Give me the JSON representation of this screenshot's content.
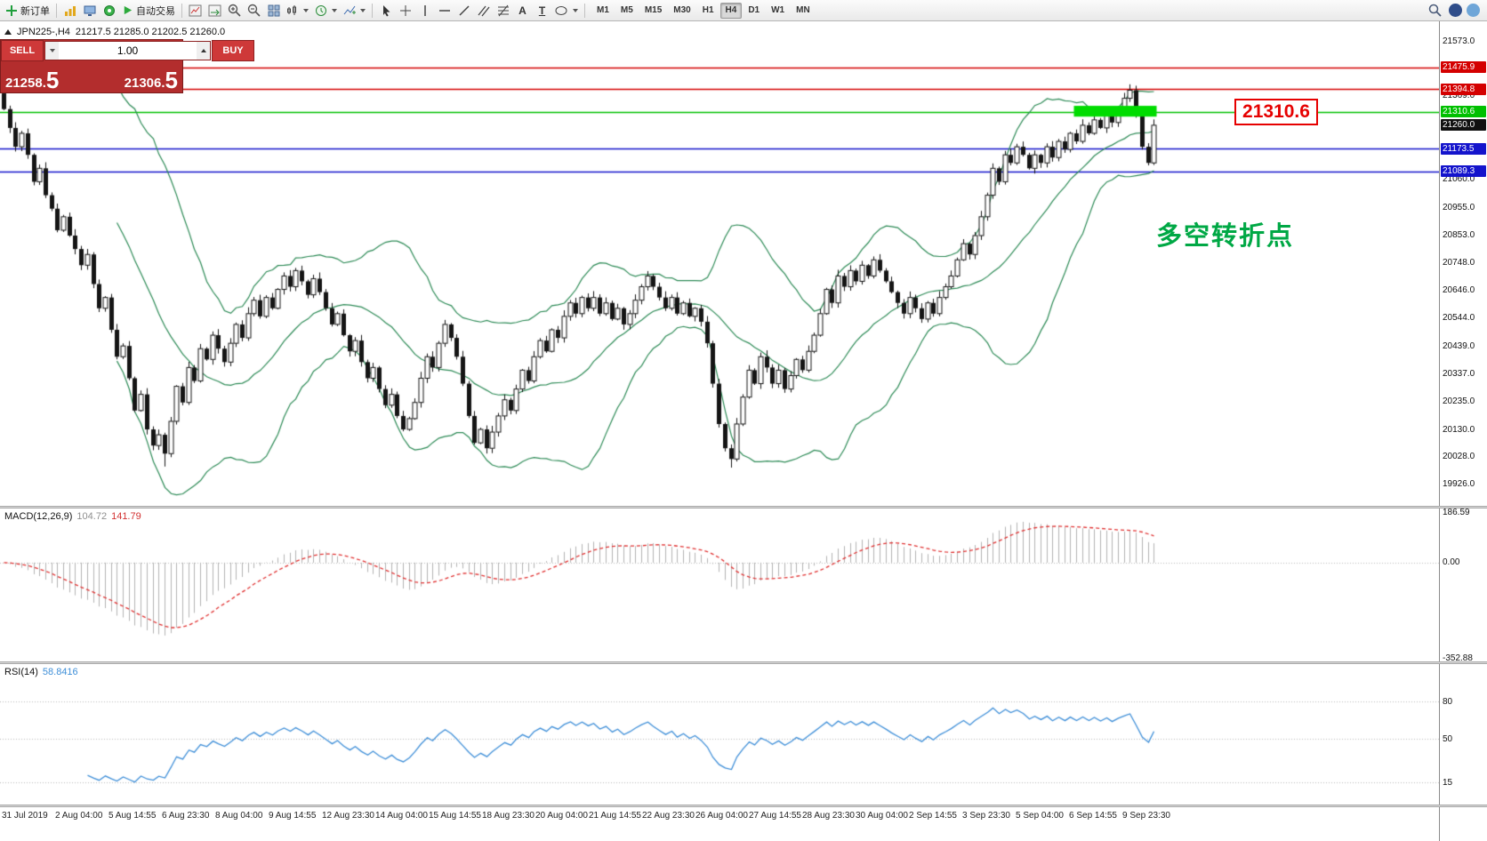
{
  "toolbar": {
    "new_order_label": "新订单",
    "auto_trading_label": "自动交易",
    "text_tool_glyph": "A",
    "label_tool_glyph": "T",
    "timeframes": [
      "M1",
      "M5",
      "M15",
      "M30",
      "H1",
      "H4",
      "D1",
      "W1",
      "MN"
    ],
    "active_timeframe": "H4"
  },
  "icons": {
    "new_order": "green-plus",
    "market_watch": "yellow-bars",
    "data_window": "blue-monitor",
    "navigator": "green-compass",
    "auto_trading": "green-play",
    "chart_shift": "chart-arrow",
    "auto_scroll": "chart-arrow-green",
    "zoom_in": "magnifier-plus",
    "zoom_out": "magnifier-minus",
    "tile_windows": "grid",
    "chart_type": "candles",
    "periods": "clock",
    "indicators": "chart-plus",
    "cursor": "arrow",
    "crosshair": "cross",
    "vertical_line": "vline",
    "horizontal_line": "hline",
    "trendline": "diagonal",
    "channel": "parallel-lines",
    "fibonacci": "fib-lines",
    "shapes": "ellipse",
    "search": "magnifier",
    "community": "blue-circle",
    "account": "gray-circle"
  },
  "symbol_info": {
    "symbol_period": "JPN225-,H4",
    "ohlc": "21217.5 21285.0 21202.5 21260.0"
  },
  "trade_panel": {
    "sell_label": "SELL",
    "buy_label": "BUY",
    "volume": "1.00",
    "sell_price_main": "21258.",
    "sell_price_big": "5",
    "buy_price_main": "21306.",
    "buy_price_big": "5"
  },
  "chart_data": {
    "type": "candlestick+indicators",
    "symbol": "JPN225-",
    "period": "H4",
    "price_max": 21646,
    "price_min": 19846,
    "first_open": 21380,
    "closes": [
      21320,
      21250,
      21180,
      21230,
      21150,
      21050,
      21100,
      21000,
      20950,
      20870,
      20920,
      20850,
      20800,
      20740,
      20780,
      20670,
      20580,
      20620,
      20500,
      20400,
      20440,
      20320,
      20200,
      20260,
      20130,
      20070,
      20110,
      20040,
      20160,
      20290,
      20230,
      20360,
      20310,
      20430,
      20390,
      20480,
      20430,
      20380,
      20450,
      20520,
      20470,
      20560,
      20610,
      20550,
      20620,
      20580,
      20650,
      20700,
      20660,
      20720,
      20680,
      20630,
      20690,
      20640,
      20580,
      20520,
      20560,
      20480,
      20420,
      20460,
      20380,
      20320,
      20360,
      20280,
      20220,
      20260,
      20180,
      20130,
      20170,
      20230,
      20320,
      20400,
      20360,
      20450,
      20520,
      20470,
      20400,
      20300,
      20180,
      20080,
      20130,
      20060,
      20120,
      20180,
      20240,
      20200,
      20280,
      20350,
      20310,
      20400,
      20460,
      20420,
      20500,
      20470,
      20550,
      20600,
      20560,
      20620,
      20580,
      20620,
      20560,
      20600,
      20540,
      20580,
      20520,
      20560,
      20610,
      20660,
      20700,
      20660,
      20620,
      20580,
      20620,
      20560,
      20600,
      20550,
      20580,
      20530,
      20450,
      20300,
      20150,
      20060,
      20020,
      20150,
      20250,
      20350,
      20300,
      20400,
      20360,
      20300,
      20350,
      20280,
      20330,
      20390,
      20350,
      20420,
      20480,
      20560,
      20650,
      20600,
      20700,
      20660,
      20720,
      20680,
      20740,
      20700,
      20760,
      20720,
      20680,
      20640,
      20600,
      20560,
      20620,
      20580,
      20540,
      20600,
      20560,
      20620,
      20660,
      20700,
      20760,
      20820,
      20780,
      20850,
      20920,
      21000,
      21100,
      21050,
      21150,
      21120,
      21180,
      21150,
      21100,
      21150,
      21120,
      21180,
      21140,
      21200,
      21170,
      21230,
      21200,
      21260,
      21230,
      21280,
      21250,
      21300,
      21270,
      21320,
      21360,
      21390,
      21300,
      21180,
      21120,
      21260
    ],
    "wick_overrides": {
      "27": {
        "low": 19992
      },
      "122": {
        "low": 19988
      },
      "189": {
        "high": 21412
      }
    },
    "bollinger": {
      "period": 20,
      "deviation": 2,
      "color": "#2E8B57"
    },
    "candle_up_color": "#ffffff",
    "candle_down_color": "#151515",
    "candle_border_color": "#151515",
    "y_ticks": [
      21573.0,
      21369.0,
      21060.0,
      20955.0,
      20853.0,
      20748.0,
      20646.0,
      20544.0,
      20439.0,
      20337.0,
      20235.0,
      20130.0,
      20028.0,
      19926.0
    ],
    "levels": [
      {
        "price": 21475.9,
        "color": "#d40000"
      },
      {
        "price": 21394.8,
        "color": "#d40000"
      },
      {
        "price": 21310.6,
        "color": "#00c000"
      },
      {
        "price": 21173.5,
        "color": "#1414cc"
      },
      {
        "price": 21089.3,
        "color": "#1414cc"
      }
    ],
    "current_price": 21260.0,
    "current_price_color": "#111111",
    "highlight": {
      "from_bar": 180,
      "to_bar": 193,
      "price_top": 21332,
      "price_bottom": 21292,
      "color": "#00dc00"
    },
    "callout": {
      "text": "21310.6"
    },
    "annotation": {
      "text": "多空转折点"
    },
    "x_labels": [
      "31 Jul 2019",
      "2 Aug 04:00",
      "5 Aug 14:55",
      "6 Aug 23:30",
      "8 Aug 04:00",
      "9 Aug 14:55",
      "12 Aug 23:30",
      "14 Aug 04:00",
      "15 Aug 14:55",
      "18 Aug 23:30",
      "20 Aug 04:00",
      "21 Aug 14:55",
      "22 Aug 23:30",
      "26 Aug 04:00",
      "27 Aug 14:55",
      "28 Aug 23:30",
      "30 Aug 04:00",
      "2 Sep 14:55",
      "3 Sep 23:30",
      "5 Sep 04:00",
      "6 Sep 14:55",
      "9 Sep 23:30"
    ],
    "macd": {
      "name": "MACD(12,26,9)",
      "value_main": "104.72",
      "value_signal": "141.79",
      "ticks": [
        186.59,
        0,
        -352.88
      ],
      "range": [
        -365,
        200
      ],
      "histogram_color": "#b2b2b2",
      "signal_color": "#e03232"
    },
    "rsi": {
      "name": "RSI(14)",
      "value": "58.8416",
      "levels": [
        80,
        50,
        15
      ],
      "range": [
        -5,
        110
      ],
      "line_color": "#3f8fd8"
    }
  }
}
